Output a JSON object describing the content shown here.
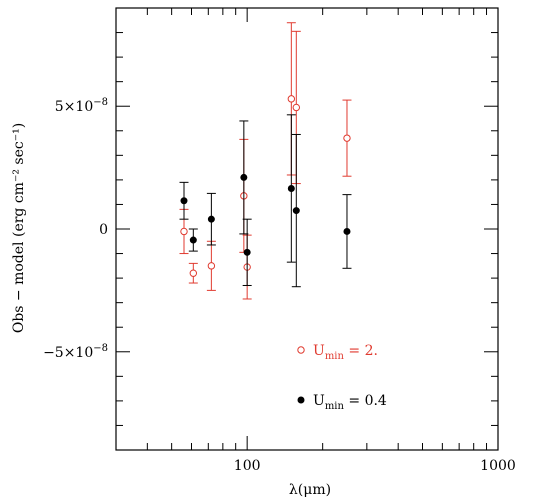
{
  "chart_data": {
    "type": "scatter",
    "xlabel": "λ(μm)",
    "ylabel": "Obs − model (erg cm⁻² sec⁻¹)",
    "xscale": "log",
    "xlim": [
      30,
      1000
    ],
    "ylim": [
      -9e-08,
      9e-08
    ],
    "grid": false,
    "legend_placement": "lower-right",
    "x_ticks": [
      {
        "value": 100,
        "label": "100"
      },
      {
        "value": 1000,
        "label": "1000"
      }
    ],
    "y_ticks": [
      {
        "value": 5e-08,
        "mantissa": "5×10",
        "exponent": "−8"
      },
      {
        "value": 0,
        "mantissa": "0",
        "exponent": ""
      },
      {
        "value": -5e-08,
        "mantissa": "−5×10",
        "exponent": "−8"
      }
    ],
    "series": [
      {
        "name_base": "U",
        "name_sub": "min",
        "name_value": " = 2.",
        "color": "#e03a2f",
        "marker": "open-circle",
        "points": [
          {
            "x": 56,
            "y": -1e-09,
            "err": 9e-09
          },
          {
            "x": 61,
            "y": -1.8e-08,
            "err": 4e-09
          },
          {
            "x": 72,
            "y": -1.5e-08,
            "err": 1e-08
          },
          {
            "x": 97,
            "y": 1.35e-08,
            "err": 2.3e-08
          },
          {
            "x": 100,
            "y": -1.55e-08,
            "err": 1.3e-08
          },
          {
            "x": 150,
            "y": 5.3e-08,
            "err": 3.1e-08
          },
          {
            "x": 157,
            "y": 4.95e-08,
            "err": 3.1e-08
          },
          {
            "x": 250,
            "y": 3.7e-08,
            "err": 1.55e-08
          }
        ]
      },
      {
        "name_base": "U",
        "name_sub": "min",
        "name_value": " = 0.4",
        "color": "#000000",
        "marker": "filled-circle",
        "points": [
          {
            "x": 56,
            "y": 1.15e-08,
            "err": 7.5e-09
          },
          {
            "x": 61,
            "y": -4.5e-09,
            "err": 4.5e-09
          },
          {
            "x": 72,
            "y": 4e-09,
            "err": 1.05e-08
          },
          {
            "x": 97,
            "y": 2.1e-08,
            "err": 2.3e-08
          },
          {
            "x": 100,
            "y": -9.5e-09,
            "err": 1.35e-08
          },
          {
            "x": 150,
            "y": 1.65e-08,
            "err": 3e-08
          },
          {
            "x": 157,
            "y": 7.5e-09,
            "err": 3.1e-08
          },
          {
            "x": 250,
            "y": -1e-09,
            "err": 1.5e-08
          }
        ]
      }
    ]
  }
}
